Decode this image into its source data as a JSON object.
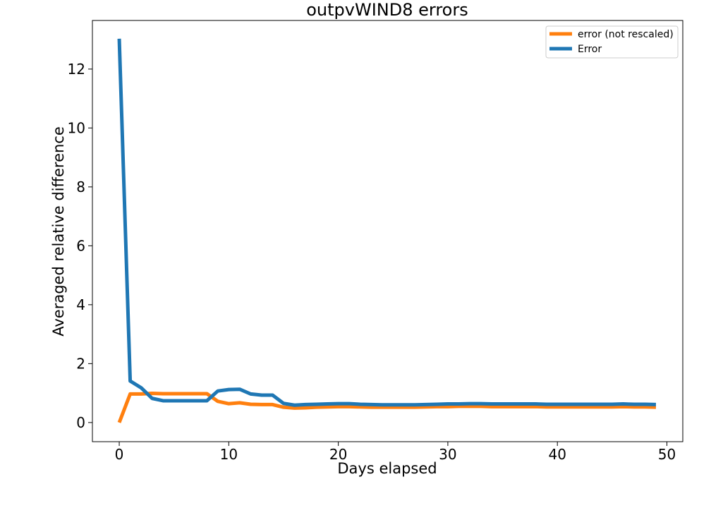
{
  "chart_data": {
    "type": "line",
    "title": "outpvWIND8 errors",
    "xlabel": "Days elapsed",
    "ylabel": "Averaged relative difference",
    "xlim": [
      -2.45,
      51.45
    ],
    "ylim": [
      -0.65,
      13.65
    ],
    "xticks": [
      0,
      10,
      20,
      30,
      40,
      50
    ],
    "yticks": [
      0,
      2,
      4,
      6,
      8,
      10,
      12
    ],
    "grid": false,
    "legend_position": "upper right",
    "x": [
      0,
      1,
      2,
      3,
      4,
      5,
      6,
      7,
      8,
      9,
      10,
      11,
      12,
      13,
      14,
      15,
      16,
      17,
      18,
      19,
      20,
      21,
      22,
      23,
      24,
      25,
      26,
      27,
      28,
      29,
      30,
      31,
      32,
      33,
      34,
      35,
      36,
      37,
      38,
      39,
      40,
      41,
      42,
      43,
      44,
      45,
      46,
      47,
      48,
      49
    ],
    "series": [
      {
        "name": "error (not rescaled)",
        "color": "#ff7f0e",
        "values": [
          0.0,
          0.97,
          0.97,
          0.99,
          0.98,
          0.98,
          0.98,
          0.98,
          0.98,
          0.72,
          0.64,
          0.67,
          0.62,
          0.61,
          0.61,
          0.52,
          0.49,
          0.5,
          0.52,
          0.53,
          0.54,
          0.54,
          0.53,
          0.52,
          0.52,
          0.52,
          0.52,
          0.52,
          0.53,
          0.54,
          0.54,
          0.55,
          0.55,
          0.55,
          0.54,
          0.54,
          0.54,
          0.54,
          0.54,
          0.53,
          0.53,
          0.53,
          0.53,
          0.53,
          0.53,
          0.53,
          0.54,
          0.53,
          0.53,
          0.52
        ]
      },
      {
        "name": "Error",
        "color": "#1f77b4",
        "values": [
          13.03,
          1.41,
          1.18,
          0.82,
          0.74,
          0.74,
          0.74,
          0.74,
          0.74,
          1.07,
          1.12,
          1.13,
          0.97,
          0.93,
          0.93,
          0.65,
          0.59,
          0.61,
          0.62,
          0.63,
          0.64,
          0.64,
          0.62,
          0.61,
          0.6,
          0.6,
          0.6,
          0.6,
          0.61,
          0.62,
          0.63,
          0.63,
          0.64,
          0.64,
          0.63,
          0.63,
          0.63,
          0.63,
          0.63,
          0.62,
          0.62,
          0.62,
          0.62,
          0.62,
          0.62,
          0.62,
          0.63,
          0.62,
          0.62,
          0.61
        ]
      }
    ]
  }
}
